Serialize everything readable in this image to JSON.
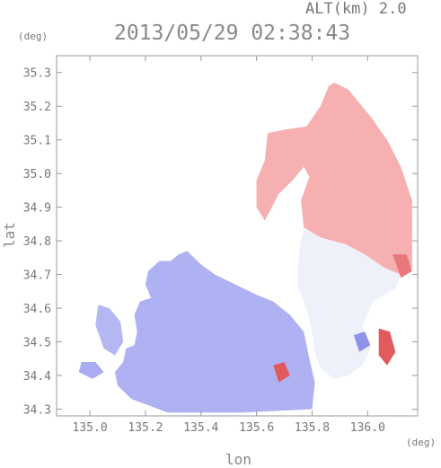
{
  "header": {
    "altitude_label": "ALT(km) 2.0",
    "timestamp": "2013/05/29 02:38:43",
    "y_unit": "(deg)",
    "x_unit": "(deg)"
  },
  "chart_data": {
    "type": "heatmap",
    "title": "2013/05/29 02:38:43",
    "subtitle": "ALT(km) 2.0",
    "xlabel": "lon",
    "ylabel": "lat",
    "x_unit": "(deg)",
    "y_unit": "(deg)",
    "xlim": [
      134.88,
      136.18
    ],
    "ylim": [
      34.28,
      35.35
    ],
    "x_ticks": [
      135.0,
      135.2,
      135.4,
      135.6,
      135.8,
      136.0
    ],
    "x_tick_labels": [
      "135.0",
      "135.2",
      "135.4",
      "135.6",
      "135.8",
      "136.0"
    ],
    "y_ticks": [
      34.3,
      34.4,
      34.5,
      34.6,
      34.7,
      34.8,
      34.9,
      35.0,
      35.1,
      35.2,
      35.3
    ],
    "y_tick_labels": [
      "34.3",
      "34.4",
      "34.5",
      "34.6",
      "34.7",
      "34.8",
      "34.9",
      "35.0",
      "35.1",
      "35.2",
      "35.3"
    ],
    "grid": false,
    "colors": {
      "positive": "#f2a0a4",
      "negative": "#a8acf2",
      "strong_positive": "#e0484c",
      "frame": "#999999"
    },
    "regions": [
      {
        "name": "positive",
        "color": "#f6b0b2",
        "polygon": [
          [
            135.88,
            35.27
          ],
          [
            135.93,
            35.25
          ],
          [
            136.01,
            35.17
          ],
          [
            136.07,
            35.1
          ],
          [
            136.12,
            35.02
          ],
          [
            136.16,
            34.92
          ],
          [
            136.16,
            34.72
          ],
          [
            136.12,
            34.7
          ],
          [
            136.06,
            34.72
          ],
          [
            135.99,
            34.76
          ],
          [
            135.92,
            34.79
          ],
          [
            135.83,
            34.81
          ],
          [
            135.77,
            34.84
          ],
          [
            135.76,
            34.92
          ],
          [
            135.79,
            34.99
          ],
          [
            135.77,
            35.02
          ],
          [
            135.73,
            34.98
          ],
          [
            135.68,
            34.94
          ],
          [
            135.63,
            34.86
          ],
          [
            135.6,
            34.9
          ],
          [
            135.6,
            34.98
          ],
          [
            135.63,
            35.04
          ],
          [
            135.64,
            35.12
          ],
          [
            135.7,
            35.13
          ],
          [
            135.78,
            35.14
          ],
          [
            135.83,
            35.2
          ],
          [
            135.86,
            35.26
          ]
        ]
      },
      {
        "name": "transition",
        "color": "#eef0fa",
        "polygon": [
          [
            135.77,
            34.84
          ],
          [
            135.83,
            34.81
          ],
          [
            135.92,
            34.79
          ],
          [
            135.99,
            34.76
          ],
          [
            136.06,
            34.72
          ],
          [
            136.12,
            34.7
          ],
          [
            136.1,
            34.66
          ],
          [
            136.02,
            34.62
          ],
          [
            135.98,
            34.55
          ],
          [
            136.01,
            34.48
          ],
          [
            135.98,
            34.43
          ],
          [
            135.93,
            34.4
          ],
          [
            135.88,
            34.39
          ],
          [
            135.83,
            34.42
          ],
          [
            135.81,
            34.47
          ],
          [
            135.8,
            34.53
          ],
          [
            135.78,
            34.6
          ],
          [
            135.75,
            34.66
          ],
          [
            135.75,
            34.74
          ],
          [
            135.76,
            34.8
          ]
        ]
      },
      {
        "name": "negative",
        "color": "#aeb2f2",
        "polygon": [
          [
            135.09,
            34.41
          ],
          [
            135.12,
            34.44
          ],
          [
            135.13,
            34.48
          ],
          [
            135.16,
            34.49
          ],
          [
            135.17,
            34.53
          ],
          [
            135.16,
            34.58
          ],
          [
            135.18,
            34.62
          ],
          [
            135.22,
            34.63
          ],
          [
            135.2,
            34.67
          ],
          [
            135.21,
            34.71
          ],
          [
            135.25,
            34.74
          ],
          [
            135.29,
            34.74
          ],
          [
            135.32,
            34.76
          ],
          [
            135.35,
            34.77
          ],
          [
            135.4,
            34.73
          ],
          [
            135.45,
            34.7
          ],
          [
            135.5,
            34.68
          ],
          [
            135.55,
            34.66
          ],
          [
            135.6,
            34.64
          ],
          [
            135.66,
            34.62
          ],
          [
            135.72,
            34.58
          ],
          [
            135.77,
            34.53
          ],
          [
            135.79,
            34.45
          ],
          [
            135.81,
            34.38
          ],
          [
            135.8,
            34.3
          ],
          [
            135.55,
            34.29
          ],
          [
            135.28,
            34.29
          ],
          [
            135.15,
            34.33
          ],
          [
            135.1,
            34.37
          ]
        ]
      },
      {
        "name": "negative-west",
        "color": "#b4b8f2",
        "polygon": [
          [
            135.03,
            34.61
          ],
          [
            135.07,
            34.6
          ],
          [
            135.11,
            34.56
          ],
          [
            135.12,
            34.5
          ],
          [
            135.09,
            34.46
          ],
          [
            135.05,
            34.48
          ],
          [
            135.02,
            34.55
          ]
        ]
      },
      {
        "name": "negative-far",
        "color": "#a8acf2",
        "polygon": [
          [
            134.97,
            34.44
          ],
          [
            135.02,
            34.44
          ],
          [
            135.05,
            34.41
          ],
          [
            135.01,
            34.39
          ],
          [
            134.96,
            34.41
          ]
        ]
      },
      {
        "name": "strong-east",
        "color": "#e05a5e",
        "polygon": [
          [
            136.04,
            34.54
          ],
          [
            136.08,
            34.53
          ],
          [
            136.1,
            34.47
          ],
          [
            136.07,
            34.43
          ],
          [
            136.04,
            34.46
          ]
        ]
      },
      {
        "name": "strong-south",
        "color": "#e05a5e",
        "polygon": [
          [
            135.66,
            34.43
          ],
          [
            135.7,
            34.44
          ],
          [
            135.72,
            34.4
          ],
          [
            135.68,
            34.38
          ]
        ]
      },
      {
        "name": "strong-edge",
        "color": "#e8787b",
        "polygon": [
          [
            136.09,
            34.76
          ],
          [
            136.14,
            34.76
          ],
          [
            136.16,
            34.71
          ],
          [
            136.12,
            34.69
          ]
        ]
      },
      {
        "name": "blue-spot",
        "color": "#8e92e8",
        "polygon": [
          [
            135.95,
            34.52
          ],
          [
            135.99,
            34.53
          ],
          [
            136.01,
            34.49
          ],
          [
            135.97,
            34.47
          ]
        ]
      }
    ]
  }
}
